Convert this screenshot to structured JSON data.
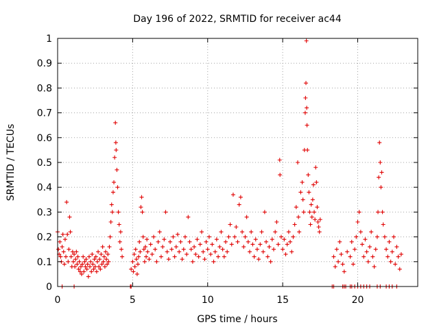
{
  "chart_data": {
    "type": "scatter",
    "title": "Day 196 of 2022, SRMTID for receiver ac44",
    "xlabel": "GPS time / hours",
    "ylabel": "SRMTID / TECUs",
    "xlim": [
      0,
      24
    ],
    "ylim": [
      0,
      1
    ],
    "xticks": [
      0,
      5,
      10,
      15,
      20
    ],
    "xtick_labels": [
      "0",
      "5",
      "10",
      "15",
      "20"
    ],
    "yticks": [
      0,
      0.1,
      0.2,
      0.3,
      0.4,
      0.5,
      0.6,
      0.7,
      0.8,
      0.9,
      1
    ],
    "ytick_labels": [
      "0",
      "0.1",
      "0.2",
      "0.3",
      "0.4",
      "0.5",
      "0.6",
      "0.7",
      "0.8",
      "0.9",
      "1"
    ],
    "grid": true,
    "marker": "+",
    "color": "#e00000",
    "series": [
      {
        "name": "SRMTID",
        "points": [
          [
            0.0,
            0.22
          ],
          [
            0.05,
            0.15
          ],
          [
            0.1,
            0.13
          ],
          [
            0.15,
            0.18
          ],
          [
            0.2,
            0.12
          ],
          [
            0.25,
            0.1
          ],
          [
            0.3,
            0.16
          ],
          [
            0.35,
            0.21
          ],
          [
            0.4,
            0.14
          ],
          [
            0.45,
            0.09
          ],
          [
            0.5,
            0.19
          ],
          [
            0.55,
            0.12
          ],
          [
            0.6,
            0.34
          ],
          [
            0.65,
            0.21
          ],
          [
            0.7,
            0.1
          ],
          [
            0.75,
            0.15
          ],
          [
            0.8,
            0.28
          ],
          [
            0.85,
            0.22
          ],
          [
            0.9,
            0.12
          ],
          [
            0.95,
            0.08
          ],
          [
            1.0,
            0.14
          ],
          [
            1.05,
            0.1
          ],
          [
            1.1,
            0.13
          ],
          [
            1.15,
            0.08
          ],
          [
            1.2,
            0.11
          ],
          [
            1.25,
            0.14
          ],
          [
            1.3,
            0.09
          ],
          [
            1.35,
            0.12
          ],
          [
            1.4,
            0.07
          ],
          [
            1.45,
            0.1
          ],
          [
            1.5,
            0.06
          ],
          [
            1.55,
            0.08
          ],
          [
            1.6,
            0.05
          ],
          [
            1.65,
            0.09
          ],
          [
            1.7,
            0.12
          ],
          [
            1.75,
            0.06
          ],
          [
            1.8,
            0.1
          ],
          [
            1.85,
            0.08
          ],
          [
            1.9,
            0.11
          ],
          [
            1.95,
            0.07
          ],
          [
            2.0,
            0.09
          ],
          [
            2.05,
            0.04
          ],
          [
            2.1,
            0.12
          ],
          [
            2.15,
            0.08
          ],
          [
            2.2,
            0.1
          ],
          [
            2.25,
            0.06
          ],
          [
            2.3,
            0.13
          ],
          [
            2.35,
            0.09
          ],
          [
            2.4,
            0.07
          ],
          [
            2.45,
            0.11
          ],
          [
            2.5,
            0.08
          ],
          [
            2.55,
            0.12
          ],
          [
            2.6,
            0.06
          ],
          [
            2.65,
            0.1
          ],
          [
            2.7,
            0.14
          ],
          [
            2.75,
            0.08
          ],
          [
            2.8,
            0.11
          ],
          [
            2.85,
            0.07
          ],
          [
            2.9,
            0.13
          ],
          [
            2.95,
            0.09
          ],
          [
            3.0,
            0.16
          ],
          [
            3.05,
            0.1
          ],
          [
            3.1,
            0.12
          ],
          [
            3.15,
            0.08
          ],
          [
            3.2,
            0.14
          ],
          [
            3.25,
            0.11
          ],
          [
            3.3,
            0.09
          ],
          [
            3.35,
            0.13
          ],
          [
            3.4,
            0.1
          ],
          [
            3.45,
            0.16
          ],
          [
            3.5,
            0.2
          ],
          [
            3.55,
            0.26
          ],
          [
            3.6,
            0.33
          ],
          [
            3.65,
            0.3
          ],
          [
            3.7,
            0.38
          ],
          [
            3.75,
            0.42
          ],
          [
            3.8,
            0.52
          ],
          [
            3.85,
            0.66
          ],
          [
            3.88,
            0.58
          ],
          [
            3.9,
            0.55
          ],
          [
            3.95,
            0.47
          ],
          [
            4.0,
            0.4
          ],
          [
            4.05,
            0.3
          ],
          [
            4.1,
            0.25
          ],
          [
            4.15,
            0.18
          ],
          [
            4.2,
            0.22
          ],
          [
            4.25,
            0.15
          ],
          [
            4.3,
            0.12
          ],
          [
            0.3,
            0.0
          ],
          [
            1.1,
            0.0
          ],
          [
            4.85,
            0.0
          ],
          [
            4.9,
            0.0
          ],
          [
            4.9,
            0.07
          ],
          [
            5.0,
            0.1
          ],
          [
            5.05,
            0.06
          ],
          [
            5.1,
            0.13
          ],
          [
            5.15,
            0.08
          ],
          [
            5.2,
            0.15
          ],
          [
            5.25,
            0.11
          ],
          [
            5.3,
            0.05
          ],
          [
            5.35,
            0.09
          ],
          [
            5.4,
            0.12
          ],
          [
            5.45,
            0.18
          ],
          [
            5.5,
            0.14
          ],
          [
            5.55,
            0.32
          ],
          [
            5.6,
            0.36
          ],
          [
            5.65,
            0.3
          ],
          [
            5.7,
            0.2
          ],
          [
            5.75,
            0.15
          ],
          [
            5.8,
            0.1
          ],
          [
            5.85,
            0.16
          ],
          [
            5.9,
            0.12
          ],
          [
            5.95,
            0.19
          ],
          [
            6.0,
            0.14
          ],
          [
            6.1,
            0.11
          ],
          [
            6.2,
            0.17
          ],
          [
            6.3,
            0.13
          ],
          [
            6.4,
            0.2
          ],
          [
            6.5,
            0.15
          ],
          [
            6.6,
            0.1
          ],
          [
            6.7,
            0.18
          ],
          [
            6.8,
            0.22
          ],
          [
            6.9,
            0.12
          ],
          [
            7.0,
            0.16
          ],
          [
            7.1,
            0.19
          ],
          [
            7.2,
            0.3
          ],
          [
            7.3,
            0.14
          ],
          [
            7.4,
            0.11
          ],
          [
            7.5,
            0.18
          ],
          [
            7.6,
            0.15
          ],
          [
            7.7,
            0.2
          ],
          [
            7.8,
            0.12
          ],
          [
            7.9,
            0.16
          ],
          [
            8.0,
            0.21
          ],
          [
            8.1,
            0.14
          ],
          [
            8.2,
            0.18
          ],
          [
            8.3,
            0.11
          ],
          [
            8.4,
            0.15
          ],
          [
            8.5,
            0.2
          ],
          [
            8.6,
            0.13
          ],
          [
            8.7,
            0.28
          ],
          [
            8.8,
            0.18
          ],
          [
            8.9,
            0.15
          ],
          [
            9.0,
            0.1
          ],
          [
            9.1,
            0.16
          ],
          [
            9.2,
            0.13
          ],
          [
            9.3,
            0.19
          ],
          [
            9.4,
            0.12
          ],
          [
            9.5,
            0.17
          ],
          [
            9.6,
            0.22
          ],
          [
            9.7,
            0.14
          ],
          [
            9.8,
            0.11
          ],
          [
            9.9,
            0.18
          ],
          [
            10.0,
            0.15
          ],
          [
            10.1,
            0.2
          ],
          [
            10.2,
            0.13
          ],
          [
            10.3,
            0.17
          ],
          [
            10.4,
            0.1
          ],
          [
            10.5,
            0.14
          ],
          [
            10.6,
            0.19
          ],
          [
            10.7,
            0.12
          ],
          [
            10.8,
            0.16
          ],
          [
            10.9,
            0.22
          ],
          [
            11.0,
            0.15
          ],
          [
            11.1,
            0.12
          ],
          [
            11.2,
            0.18
          ],
          [
            11.3,
            0.14
          ],
          [
            11.4,
            0.2
          ],
          [
            11.5,
            0.25
          ],
          [
            11.6,
            0.17
          ],
          [
            11.7,
            0.37
          ],
          [
            11.8,
            0.2
          ],
          [
            11.9,
            0.24
          ],
          [
            12.0,
            0.18
          ],
          [
            12.1,
            0.33
          ],
          [
            12.2,
            0.36
          ],
          [
            12.3,
            0.22
          ],
          [
            12.4,
            0.16
          ],
          [
            12.5,
            0.2
          ],
          [
            12.6,
            0.28
          ],
          [
            12.7,
            0.18
          ],
          [
            12.8,
            0.14
          ],
          [
            12.9,
            0.22
          ],
          [
            13.0,
            0.17
          ],
          [
            13.1,
            0.12
          ],
          [
            13.2,
            0.19
          ],
          [
            13.3,
            0.15
          ],
          [
            13.4,
            0.11
          ],
          [
            13.5,
            0.17
          ],
          [
            13.6,
            0.22
          ],
          [
            13.7,
            0.14
          ],
          [
            13.8,
            0.3
          ],
          [
            13.9,
            0.18
          ],
          [
            14.0,
            0.12
          ],
          [
            14.1,
            0.16
          ],
          [
            14.2,
            0.1
          ],
          [
            14.3,
            0.19
          ],
          [
            14.4,
            0.15
          ],
          [
            14.5,
            0.22
          ],
          [
            14.6,
            0.26
          ],
          [
            14.7,
            0.17
          ],
          [
            14.8,
            0.51
          ],
          [
            14.82,
            0.45
          ],
          [
            14.9,
            0.2
          ],
          [
            15.0,
            0.15
          ],
          [
            15.1,
            0.19
          ],
          [
            15.2,
            0.13
          ],
          [
            15.3,
            0.17
          ],
          [
            15.4,
            0.22
          ],
          [
            15.5,
            0.18
          ],
          [
            15.6,
            0.14
          ],
          [
            15.7,
            0.2
          ],
          [
            15.8,
            0.25
          ],
          [
            15.9,
            0.32
          ],
          [
            16.0,
            0.5
          ],
          [
            16.05,
            0.28
          ],
          [
            16.1,
            0.22
          ],
          [
            16.2,
            0.38
          ],
          [
            16.3,
            0.42
          ],
          [
            16.35,
            0.35
          ],
          [
            16.4,
            0.3
          ],
          [
            16.45,
            0.55
          ],
          [
            16.5,
            0.7
          ],
          [
            16.52,
            0.76
          ],
          [
            16.55,
            0.82
          ],
          [
            16.58,
            0.99
          ],
          [
            16.6,
            0.72
          ],
          [
            16.62,
            0.65
          ],
          [
            16.65,
            0.55
          ],
          [
            16.7,
            0.45
          ],
          [
            16.75,
            0.38
          ],
          [
            16.8,
            0.3
          ],
          [
            16.85,
            0.25
          ],
          [
            16.9,
            0.33
          ],
          [
            16.95,
            0.28
          ],
          [
            17.0,
            0.35
          ],
          [
            17.05,
            0.41
          ],
          [
            17.1,
            0.3
          ],
          [
            17.15,
            0.27
          ],
          [
            17.2,
            0.48
          ],
          [
            17.25,
            0.42
          ],
          [
            17.3,
            0.32
          ],
          [
            17.35,
            0.26
          ],
          [
            17.4,
            0.24
          ],
          [
            17.45,
            0.22
          ],
          [
            17.5,
            0.27
          ],
          [
            18.3,
            0.0
          ],
          [
            18.4,
            0.0
          ],
          [
            19.0,
            0.0
          ],
          [
            19.1,
            0.0
          ],
          [
            19.2,
            0.0
          ],
          [
            19.5,
            0.0
          ],
          [
            19.6,
            0.0
          ],
          [
            19.8,
            0.0
          ],
          [
            20.0,
            0.0
          ],
          [
            20.2,
            0.0
          ],
          [
            20.4,
            0.0
          ],
          [
            20.6,
            0.0
          ],
          [
            20.8,
            0.0
          ],
          [
            21.3,
            0.0
          ],
          [
            21.5,
            0.0
          ],
          [
            21.9,
            0.0
          ],
          [
            22.1,
            0.0
          ],
          [
            22.3,
            0.0
          ],
          [
            22.6,
            0.0
          ],
          [
            18.4,
            0.12
          ],
          [
            18.5,
            0.08
          ],
          [
            18.6,
            0.15
          ],
          [
            18.7,
            0.1
          ],
          [
            18.8,
            0.18
          ],
          [
            18.9,
            0.13
          ],
          [
            19.0,
            0.09
          ],
          [
            19.1,
            0.06
          ],
          [
            19.3,
            0.14
          ],
          [
            19.5,
            0.12
          ],
          [
            19.6,
            0.18
          ],
          [
            19.7,
            0.09
          ],
          [
            19.8,
            0.15
          ],
          [
            19.9,
            0.2
          ],
          [
            20.0,
            0.26
          ],
          [
            20.1,
            0.3
          ],
          [
            20.2,
            0.22
          ],
          [
            20.3,
            0.17
          ],
          [
            20.4,
            0.12
          ],
          [
            20.5,
            0.19
          ],
          [
            20.6,
            0.14
          ],
          [
            20.7,
            0.1
          ],
          [
            20.8,
            0.16
          ],
          [
            20.9,
            0.22
          ],
          [
            21.0,
            0.12
          ],
          [
            21.1,
            0.08
          ],
          [
            21.2,
            0.15
          ],
          [
            21.3,
            0.2
          ],
          [
            21.35,
            0.3
          ],
          [
            21.4,
            0.44
          ],
          [
            21.45,
            0.58
          ],
          [
            21.5,
            0.5
          ],
          [
            21.55,
            0.4
          ],
          [
            21.6,
            0.46
          ],
          [
            21.65,
            0.3
          ],
          [
            21.7,
            0.25
          ],
          [
            21.8,
            0.2
          ],
          [
            21.9,
            0.15
          ],
          [
            22.0,
            0.12
          ],
          [
            22.1,
            0.18
          ],
          [
            22.2,
            0.1
          ],
          [
            22.3,
            0.14
          ],
          [
            22.4,
            0.2
          ],
          [
            22.5,
            0.09
          ],
          [
            22.6,
            0.16
          ],
          [
            22.7,
            0.12
          ],
          [
            22.8,
            0.07
          ],
          [
            22.9,
            0.13
          ]
        ]
      }
    ]
  }
}
